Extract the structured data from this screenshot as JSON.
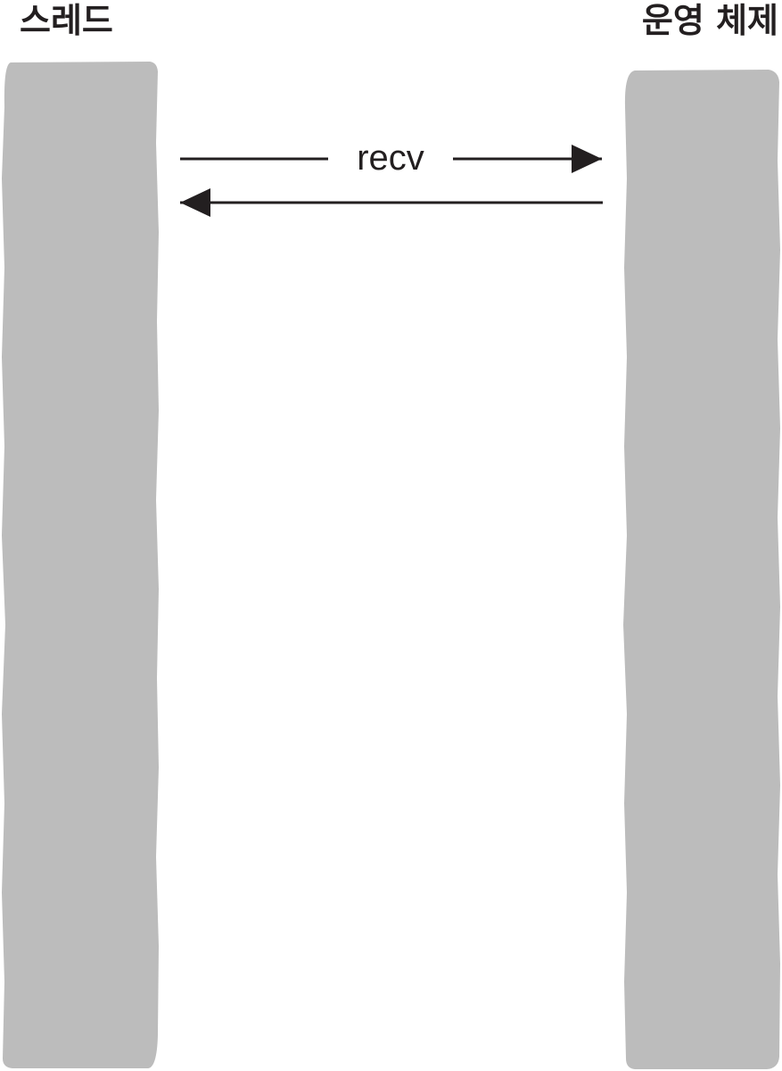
{
  "lanes": {
    "left": "스레드",
    "right": "운영 체제"
  },
  "messages": {
    "call": "recv"
  },
  "colors": {
    "lifeline": "#bcbcbc",
    "ink": "#231f20",
    "background": "#ffffff"
  }
}
